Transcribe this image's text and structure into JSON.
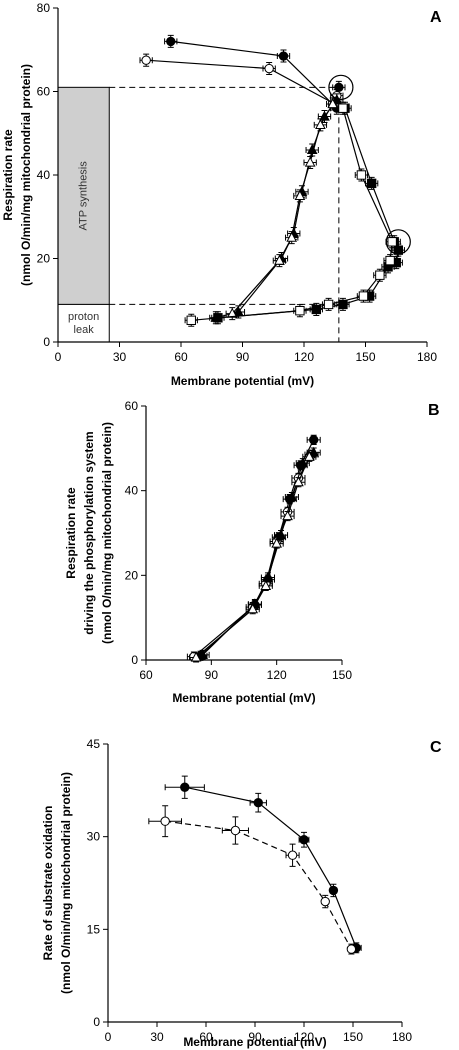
{
  "chart_data": [
    {
      "type": "scatter",
      "panel_label": "A",
      "xlabel": "Membrane potential (mV)",
      "ylabel": "Respiration rate",
      "ylabel2": "(nmol O/min/mg mitochondrial protein)",
      "xlim": [
        0,
        180
      ],
      "ylim": [
        0,
        80
      ],
      "xticks": [
        0,
        30,
        60,
        90,
        120,
        150,
        180
      ],
      "yticks": [
        0,
        20,
        40,
        60,
        80
      ],
      "annotations": {
        "atp_box_label": "ATP synthesis",
        "leak_box_label_1": "proton",
        "leak_box_label_2": "leak"
      },
      "reference": {
        "box_x": [
          0,
          25
        ],
        "leak_y": [
          0,
          9
        ],
        "atp_y": [
          9,
          61
        ],
        "vline_x": 137,
        "upper_hline_y": 61,
        "lower_hline_y": 9
      },
      "highlight_circles": [
        {
          "x": 138,
          "y": 61
        },
        {
          "x": 166,
          "y": 24
        }
      ],
      "series": [
        {
          "marker": "filled-circle",
          "points": [
            [
              55,
              72
            ],
            [
              110,
              68.5
            ],
            [
              136,
              56
            ],
            [
              137,
              61
            ]
          ]
        },
        {
          "marker": "open-circle",
          "points": [
            [
              43,
              67.5
            ],
            [
              103,
              65.5
            ],
            [
              135,
              57
            ],
            [
              136,
              59
            ]
          ]
        },
        {
          "marker": "filled-triangle",
          "points": [
            [
              77,
              5.8
            ],
            [
              88,
              7.2
            ],
            [
              109,
              20
            ],
            [
              115,
              26
            ],
            [
              119,
              36
            ],
            [
              124,
              46
            ],
            [
              130,
              54
            ],
            [
              136,
              58
            ]
          ]
        },
        {
          "marker": "open-triangle",
          "points": [
            [
              85,
              6.8
            ],
            [
              108,
              19.5
            ],
            [
              114,
              25
            ],
            [
              118,
              35
            ],
            [
              123,
              43
            ],
            [
              128,
              52
            ],
            [
              134,
              57
            ]
          ]
        },
        {
          "marker": "filled-square",
          "points": [
            [
              78,
              5.8
            ],
            [
              126,
              7.8
            ],
            [
              139,
              9
            ],
            [
              152,
              11
            ],
            [
              161,
              18
            ],
            [
              165,
              19
            ],
            [
              166,
              22
            ],
            [
              164,
              24
            ],
            [
              153,
              38
            ],
            [
              140,
              56
            ]
          ]
        },
        {
          "marker": "open-square",
          "points": [
            [
              65,
              5.2
            ],
            [
              118,
              7.5
            ],
            [
              132,
              9
            ],
            [
              149,
              11
            ],
            [
              157,
              16
            ],
            [
              162,
              19.5
            ],
            [
              163,
              24
            ],
            [
              148,
              40
            ],
            [
              139,
              56
            ]
          ]
        }
      ]
    },
    {
      "type": "scatter",
      "panel_label": "B",
      "xlabel": "Membrane potential (mV)",
      "ylabel": "Respiration rate",
      "ylabel2": "driving the phosphorylation system",
      "ylabel3": "(nmol O/min/mg mitochondrial protein)",
      "xlim": [
        60,
        150
      ],
      "ylim": [
        0,
        60
      ],
      "xticks": [
        60,
        90,
        120,
        150
      ],
      "yticks": [
        0,
        20,
        40,
        60
      ],
      "series": [
        {
          "marker": "filled-circle",
          "points": [
            [
              85,
              1
            ],
            [
              110,
              13
            ],
            [
              116,
              19
            ],
            [
              121,
              29
            ],
            [
              126,
              38
            ],
            [
              131,
              46
            ],
            [
              137,
              52
            ]
          ]
        },
        {
          "marker": "open-circle",
          "points": [
            [
              82,
              0.8
            ],
            [
              109,
              12.5
            ],
            [
              115,
              18
            ],
            [
              120,
              28
            ],
            [
              125,
              35
            ],
            [
              130,
              43
            ],
            [
              136,
              48.5
            ]
          ]
        },
        {
          "marker": "filled-triangle",
          "points": [
            [
              86,
              1.2
            ],
            [
              110,
              13.2
            ],
            [
              116,
              19.5
            ],
            [
              122,
              29.5
            ],
            [
              127,
              38.5
            ],
            [
              132,
              46.5
            ],
            [
              137,
              49
            ]
          ]
        },
        {
          "marker": "open-triangle",
          "points": [
            [
              83,
              0.6
            ],
            [
              109,
              12
            ],
            [
              115,
              17.5
            ],
            [
              120,
              27.5
            ],
            [
              125,
              34
            ],
            [
              130,
              42
            ],
            [
              135,
              48
            ]
          ]
        }
      ]
    },
    {
      "type": "line",
      "panel_label": "C",
      "xlabel": "Membrane potential (mV)",
      "ylabel": "Rate of substrate oxidation",
      "ylabel2": "(nmol O/min/mg mitochondrial protein)",
      "xlim": [
        0,
        180
      ],
      "ylim": [
        0,
        45
      ],
      "xticks": [
        0,
        30,
        60,
        90,
        120,
        150,
        180
      ],
      "yticks": [
        0,
        15,
        30,
        45
      ],
      "series": [
        {
          "marker": "filled-circle",
          "line": "solid",
          "points": [
            [
              47,
              38
            ],
            [
              92,
              35.5
            ],
            [
              120,
              29.5
            ],
            [
              138,
              21.3
            ],
            [
              152,
              12
            ]
          ],
          "xerr": [
            12,
            5,
            3,
            2,
            3
          ],
          "yerr": [
            1.8,
            1.5,
            1.2,
            1,
            0.8
          ]
        },
        {
          "marker": "open-circle",
          "line": "dashed",
          "points": [
            [
              35,
              32.5
            ],
            [
              78,
              31
            ],
            [
              113,
              27
            ],
            [
              133,
              19.5
            ],
            [
              149,
              11.8
            ]
          ],
          "xerr": [
            10,
            8,
            4,
            2,
            2
          ],
          "yerr": [
            2.5,
            2.2,
            1.8,
            1,
            0.8
          ]
        }
      ]
    }
  ]
}
